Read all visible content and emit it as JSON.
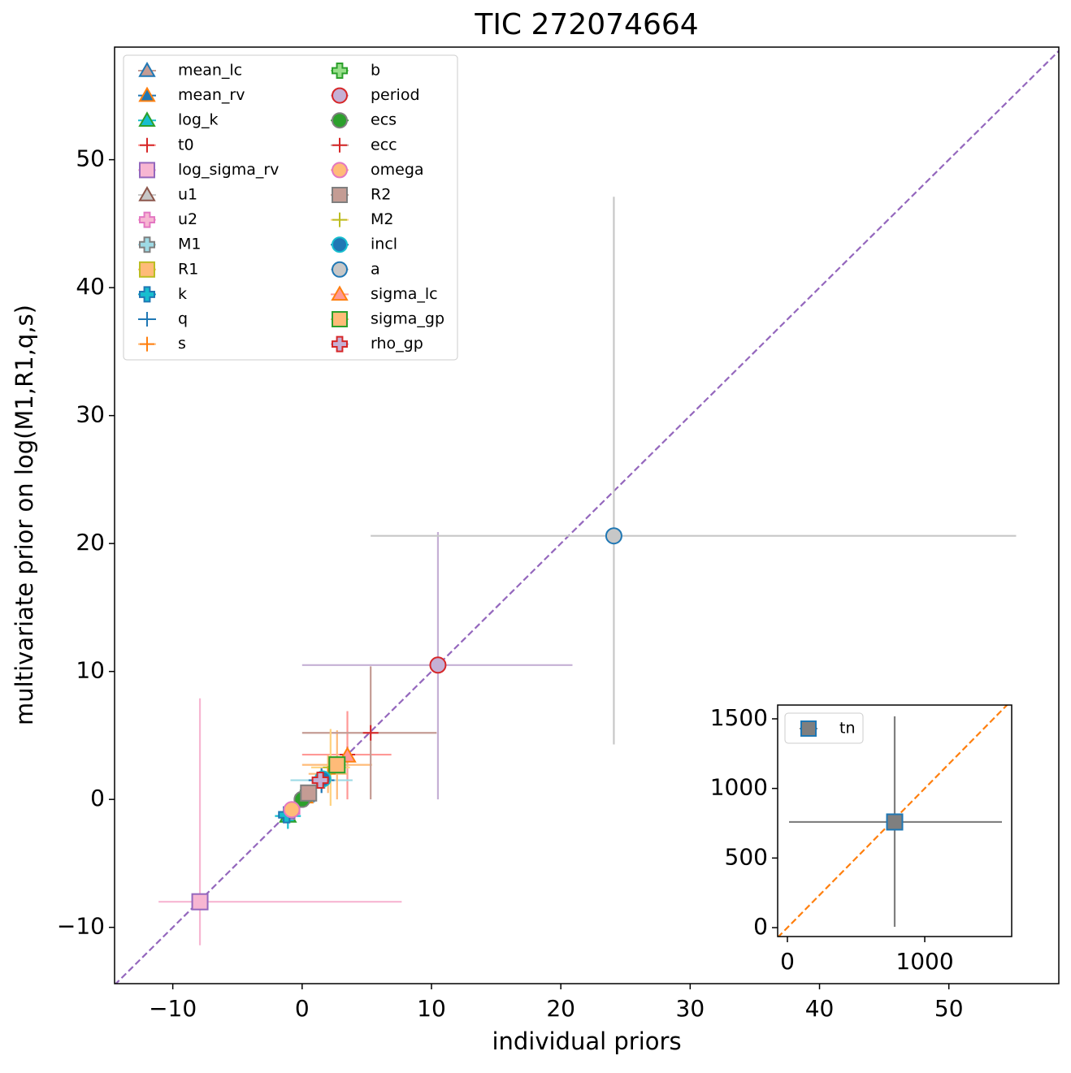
{
  "chart_data": [
    {
      "type": "scatter",
      "title": "TIC 272074664",
      "xlabel": "individual priors",
      "ylabel": "multivariate prior on log(M1,R1,q,s)",
      "xlim": [
        -14.5,
        58.5
      ],
      "ylim": [
        -14.4,
        58.8
      ],
      "xticks": [
        {
          "value": -10,
          "label": "−10"
        },
        0,
        10,
        20,
        30,
        40,
        50
      ],
      "yticks": [
        {
          "value": -10,
          "label": "−10"
        },
        0,
        10,
        20,
        30,
        40,
        50
      ],
      "diagonal_color": "#9467bd",
      "legend": "upper left",
      "legend_columns": 2,
      "series": [
        {
          "name": "mean_lc",
          "marker": "^",
          "color": "#c49c94",
          "edgecolor": "#1f77b4",
          "ecolor": "#c49c94",
          "x": 0.3,
          "y": 0.3,
          "xerr": [
            0.3,
            0.3
          ],
          "yerr": [
            0.3,
            0.3
          ]
        },
        {
          "name": "mean_rv",
          "marker": "^",
          "color": "#1f77b4",
          "edgecolor": "#ff7f0e",
          "ecolor": "#1f77b4",
          "x": 0.2,
          "y": 0.2,
          "xerr": [
            0.3,
            0.3
          ],
          "yerr": [
            0.3,
            0.3
          ]
        },
        {
          "name": "log_k",
          "marker": "^",
          "color": "#17becf",
          "edgecolor": "#2ca02c",
          "ecolor": "#17becf",
          "x": -1.1,
          "y": -1.3,
          "xerr": [
            1.0,
            1.0
          ],
          "yerr": [
            1.0,
            1.0
          ]
        },
        {
          "name": "t0",
          "marker": "+",
          "color": "#d62728",
          "edgecolor": "#d62728",
          "ecolor": "#ff9896",
          "x": 3.5,
          "y": 3.5,
          "xerr": [
            3.5,
            3.4
          ],
          "yerr": [
            3.5,
            3.4
          ]
        },
        {
          "name": "log_sigma_rv",
          "marker": "s",
          "color": "#f7b6d2",
          "edgecolor": "#9467bd",
          "ecolor": "#f7b6d2",
          "x": -7.9,
          "y": -8.0,
          "xerr": [
            3.2,
            15.6
          ],
          "yerr": [
            3.4,
            15.9
          ]
        },
        {
          "name": "u1",
          "marker": "^",
          "color": "#c7c7c7",
          "edgecolor": "#8c564b",
          "ecolor": "#c7c7c7",
          "x": 0.4,
          "y": 0.4,
          "xerr": [
            0.4,
            0.4
          ],
          "yerr": [
            0.4,
            0.4
          ]
        },
        {
          "name": "u2",
          "marker": "P",
          "color": "#f7b6d2",
          "edgecolor": "#e377c2",
          "ecolor": "#f7b6d2",
          "x": -0.8,
          "y": -0.9,
          "xerr": [
            0.6,
            0.6
          ],
          "yerr": [
            0.6,
            0.6
          ]
        },
        {
          "name": "M1",
          "marker": "P",
          "color": "#9edae5",
          "edgecolor": "#7f7f7f",
          "ecolor": "#9edae5",
          "x": 1.5,
          "y": 1.5,
          "xerr": [
            2.4,
            2.4
          ],
          "yerr": [
            0.8,
            0.8
          ]
        },
        {
          "name": "R1",
          "marker": "s",
          "color": "#ffbb78",
          "edgecolor": "#bcbd22",
          "ecolor": "#ffbb78",
          "x": 2.7,
          "y": 2.7,
          "xerr": [
            2.7,
            2.7
          ],
          "yerr": [
            2.7,
            2.7
          ]
        },
        {
          "name": "k",
          "marker": "P",
          "color": "#17becf",
          "edgecolor": "#1f77b4",
          "ecolor": "#17becf",
          "x": -1.2,
          "y": -1.2,
          "xerr": [
            0.6,
            0.6
          ],
          "yerr": [
            0.6,
            0.6
          ]
        },
        {
          "name": "q",
          "marker": "+",
          "color": "#1f77b4",
          "edgecolor": "#1f77b4",
          "ecolor": "#1f77b4",
          "x": 1.5,
          "y": 1.5,
          "xerr": [
            1.0,
            1.0
          ],
          "yerr": [
            1.0,
            1.0
          ]
        },
        {
          "name": "s",
          "marker": "+",
          "color": "#ff7f0e",
          "edgecolor": "#ff7f0e",
          "ecolor": "#ffbb78",
          "x": 2.0,
          "y": 2.0,
          "xerr": [
            1.5,
            1.5
          ],
          "yerr": [
            1.5,
            1.5
          ]
        },
        {
          "name": "b",
          "marker": "P",
          "color": "#98df8a",
          "edgecolor": "#2ca02c",
          "ecolor": "#98df8a",
          "x": 0.1,
          "y": 0.1,
          "xerr": [
            0.3,
            0.3
          ],
          "yerr": [
            0.3,
            0.3
          ]
        },
        {
          "name": "period",
          "marker": "o",
          "color": "#c5b0d5",
          "edgecolor": "#d62728",
          "ecolor": "#c5b0d5",
          "x": 10.5,
          "y": 10.5,
          "xerr": [
            10.5,
            10.4
          ],
          "yerr": [
            10.5,
            10.4
          ]
        },
        {
          "name": "ecs",
          "marker": "o",
          "color": "#2ca02c",
          "edgecolor": "#7f7f7f",
          "ecolor": "#2ca02c",
          "x": 0.0,
          "y": 0.0,
          "xerr": [
            0.3,
            0.3
          ],
          "yerr": [
            0.3,
            0.3
          ]
        },
        {
          "name": "ecc",
          "marker": "+",
          "color": "#d62728",
          "edgecolor": "#8c564b",
          "ecolor": "#c49c94",
          "x": 5.3,
          "y": 5.2,
          "xerr": [
            5.3,
            5.1
          ],
          "yerr": [
            5.2,
            5.2
          ]
        },
        {
          "name": "omega",
          "marker": "o",
          "color": "#ffbb78",
          "edgecolor": "#e377c2",
          "ecolor": "#ffbb78",
          "x": -0.8,
          "y": -0.8,
          "xerr": [
            0.6,
            0.6
          ],
          "yerr": [
            0.6,
            0.6
          ]
        },
        {
          "name": "R2",
          "marker": "s",
          "color": "#c49c94",
          "edgecolor": "#7f7f7f",
          "ecolor": "#c49c94",
          "x": 0.5,
          "y": 0.5,
          "xerr": [
            0.5,
            0.5
          ],
          "yerr": [
            0.5,
            0.5
          ]
        },
        {
          "name": "M2",
          "marker": "+",
          "color": "#bcbd22",
          "edgecolor": "#bcbd22",
          "ecolor": "#ffd27f",
          "x": 2.2,
          "y": 2.5,
          "xerr": [
            1.5,
            1.5
          ],
          "yerr": [
            3.0,
            3.0
          ]
        },
        {
          "name": "incl",
          "marker": "o",
          "color": "#1f77b4",
          "edgecolor": "#17becf",
          "ecolor": "#1f77b4",
          "x": 1.6,
          "y": 1.6,
          "xerr": [
            0.6,
            0.6
          ],
          "yerr": [
            0.6,
            0.6
          ]
        },
        {
          "name": "a",
          "marker": "o",
          "color": "#c7c7c7",
          "edgecolor": "#1f77b4",
          "ecolor": "#c7c7c7",
          "x": 24.1,
          "y": 20.6,
          "xerr": [
            18.8,
            31.1
          ],
          "yerr": [
            16.3,
            26.5
          ]
        },
        {
          "name": "sigma_lc",
          "marker": "^",
          "color": "#ff9896",
          "edgecolor": "#ff7f0e",
          "ecolor": "#ff9896",
          "x": 3.5,
          "y": 3.4,
          "xerr": [
            0.4,
            0.4
          ],
          "yerr": [
            0.4,
            0.4
          ]
        },
        {
          "name": "sigma_gp",
          "marker": "s",
          "color": "#ffbb78",
          "edgecolor": "#2ca02c",
          "ecolor": "#ffbb78",
          "x": 2.7,
          "y": 2.7,
          "xerr": [
            0.5,
            0.5
          ],
          "yerr": [
            0.5,
            0.5
          ]
        },
        {
          "name": "rho_gp",
          "marker": "P",
          "color": "#c5b0d5",
          "edgecolor": "#d62728",
          "ecolor": "#c5b0d5",
          "x": 1.4,
          "y": 1.5,
          "xerr": [
            0.5,
            0.5
          ],
          "yerr": [
            0.5,
            0.5
          ]
        }
      ]
    },
    {
      "type": "scatter",
      "xlim": [
        -71,
        1633
      ],
      "ylim": [
        -64,
        1599
      ],
      "xticks": [
        0,
        1000
      ],
      "yticks": [
        0,
        500,
        1000,
        1500
      ],
      "diagonal_color": "#ff7f0e",
      "legend": "upper left",
      "legend_columns": 1,
      "series": [
        {
          "name": "tn",
          "marker": "s",
          "color": "#7f7f7f",
          "edgecolor": "#1f77b4",
          "ecolor": "#7f7f7f",
          "x": 781,
          "y": 759,
          "xerr": [
            769,
            781
          ],
          "yerr": [
            753,
            759
          ]
        }
      ]
    }
  ]
}
